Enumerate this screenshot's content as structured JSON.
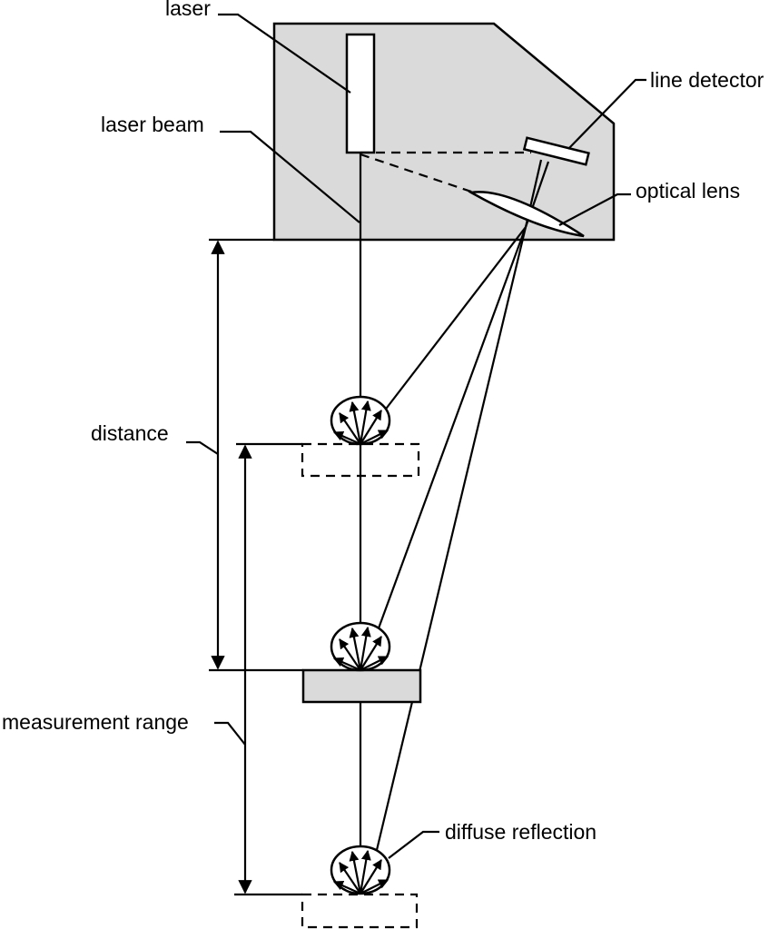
{
  "labels": {
    "laser": "laser",
    "laser_beam": "laser beam",
    "line_detector": "line detector",
    "optical_lens": "optical lens",
    "distance": "distance",
    "measurement_range": "measurement range",
    "diffuse_reflection": "diffuse reflection"
  },
  "colors": {
    "housing_fill": "#dadada",
    "object_fill": "#dadada",
    "line": "#000000"
  }
}
